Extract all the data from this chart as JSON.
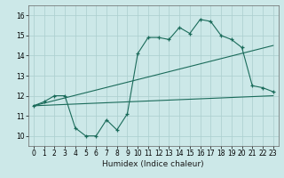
{
  "xlabel": "Humidex (Indice chaleur)",
  "xlim": [
    -0.5,
    23.5
  ],
  "ylim": [
    9.5,
    16.5
  ],
  "xticks": [
    0,
    1,
    2,
    3,
    4,
    5,
    6,
    7,
    8,
    9,
    10,
    11,
    12,
    13,
    14,
    15,
    16,
    17,
    18,
    19,
    20,
    21,
    22,
    23
  ],
  "yticks": [
    10,
    11,
    12,
    13,
    14,
    15,
    16
  ],
  "bg_color": "#cce8e8",
  "grid_color": "#aacece",
  "line_color": "#1a6b5a",
  "main_x": [
    0,
    1,
    2,
    3,
    4,
    5,
    6,
    7,
    8,
    9,
    10,
    11,
    12,
    13,
    14,
    15,
    16,
    17,
    18,
    19,
    20,
    21,
    22,
    23
  ],
  "main_y": [
    11.5,
    11.7,
    12.0,
    12.0,
    10.4,
    10.0,
    10.0,
    10.8,
    10.3,
    11.1,
    14.1,
    14.9,
    14.9,
    14.8,
    15.4,
    15.1,
    15.8,
    15.7,
    15.0,
    14.8,
    14.4,
    12.5,
    12.4,
    12.2
  ],
  "trend1_x": [
    0,
    23
  ],
  "trend1_y": [
    11.5,
    12.0
  ],
  "trend2_x": [
    0,
    23
  ],
  "trend2_y": [
    11.5,
    14.5
  ]
}
